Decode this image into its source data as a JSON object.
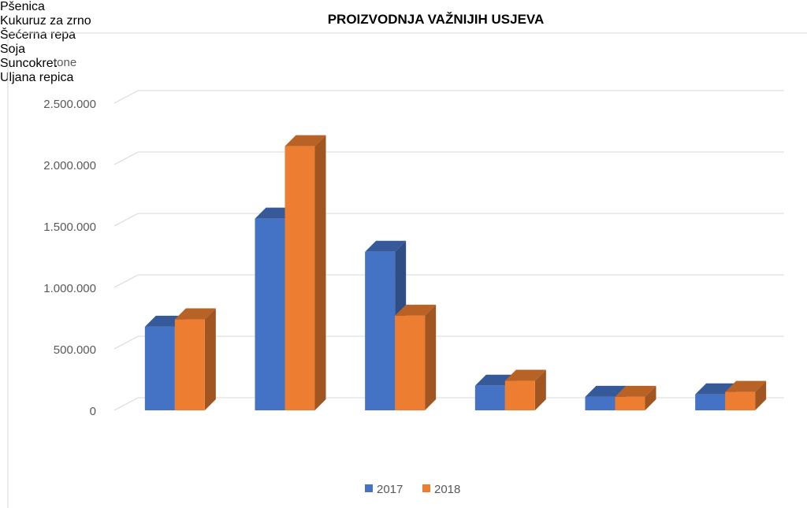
{
  "chart_data": {
    "type": "bar3d",
    "title": "PROIZVODNJA VAŽNIJIH USJEVA",
    "y_label": "tone",
    "categories": [
      "Pšenica",
      "Kukuruz za zrno",
      "Šećerna repa",
      "Soja",
      "Suncokret",
      "Uljana repica"
    ],
    "series": [
      {
        "name": "2017",
        "color": "#4472c4",
        "values": [
          680000,
          1560000,
          1290000,
          200000,
          110000,
          130000
        ]
      },
      {
        "name": "2018",
        "color": "#ed7d31",
        "values": [
          740000,
          2150000,
          770000,
          240000,
          110000,
          150000
        ]
      }
    ],
    "ylim": [
      0,
      2500000
    ],
    "yticks": [
      0,
      {
        "value": 500000,
        "label": "500.000"
      },
      {
        "value": 1000000,
        "label": "1.000.000"
      },
      {
        "value": 1500000,
        "label": "1.500.000"
      },
      {
        "value": 2000000,
        "label": "2.000.000"
      },
      {
        "value": 2500000,
        "label": "2.500.000"
      }
    ],
    "grid": true,
    "legend": "bottom"
  }
}
